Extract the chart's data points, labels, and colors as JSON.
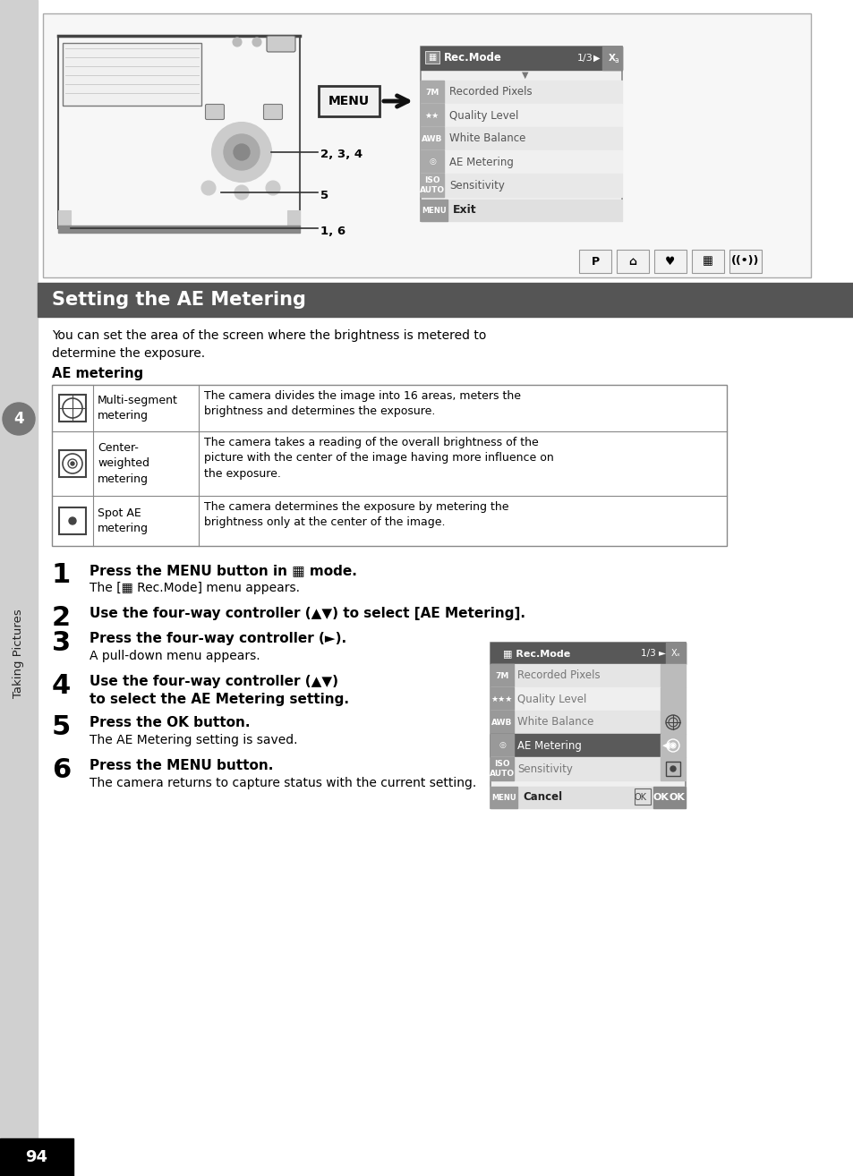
{
  "page_bg": "#ffffff",
  "left_sidebar_color": "#d0d0d0",
  "title_bar_color": "#555555",
  "title_text": "Setting the AE Metering",
  "title_text_color": "#ffffff",
  "title_fontsize": 15,
  "body_text_color": "#000000",
  "intro_text": "You can set the area of the screen where the brightness is metered to\ndetermine the exposure.",
  "ae_heading": "AE metering",
  "table_rows": [
    {
      "icon": "multi_segment",
      "col2": "Multi-segment\nmetering",
      "col3": "The camera divides the image into 16 areas, meters the\nbrightness and determines the exposure."
    },
    {
      "icon": "center_weighted",
      "col2": "Center-\nweighted\nmetering",
      "col3": "The camera takes a reading of the overall brightness of the\npicture with the center of the image having more influence on\nthe exposure."
    },
    {
      "icon": "spot",
      "col2": "Spot AE\nmetering",
      "col3": "The camera determines the exposure by metering the\nbrightness only at the center of the image."
    }
  ],
  "steps": [
    {
      "num": "1",
      "bold": "Press the MENU button in ▦ mode.",
      "plain": "The [▦ Rec.Mode] menu appears.",
      "has_screen": false
    },
    {
      "num": "2",
      "bold": "Use the four-way controller (▲▼) to select [AE Metering].",
      "plain": "",
      "has_screen": false
    },
    {
      "num": "3",
      "bold": "Press the four-way controller (►).",
      "plain": "A pull-down menu appears.",
      "has_screen": true
    },
    {
      "num": "4",
      "bold": "Use the four-way controller (▲▼)\nto select the AE Metering setting.",
      "plain": "",
      "has_screen": false
    },
    {
      "num": "5",
      "bold": "Press the OK button.",
      "plain": "The AE Metering setting is saved.",
      "has_screen": false
    },
    {
      "num": "6",
      "bold": "Press the MENU button.",
      "plain": "The camera returns to capture status with the current setting.",
      "has_screen": false
    }
  ],
  "footer_page": "94",
  "footer_bg": "#000000",
  "footer_text_color": "#ffffff",
  "top_menu_items": [
    "Recorded Pixels",
    "Quality Level",
    "White Balance",
    "AE Metering",
    "Sensitivity"
  ],
  "top_menu_icons": [
    "7M",
    "★★",
    "AWB",
    "◎",
    "ISO\nAUTO"
  ],
  "side_menu_items": [
    "Recorded Pixels",
    "Quality Level",
    "White Balance",
    "AE Metering",
    "Sensitivity"
  ],
  "side_menu_icons": [
    "7M",
    "★★★",
    "AWB",
    "◎",
    "ISO\nAUTO"
  ]
}
